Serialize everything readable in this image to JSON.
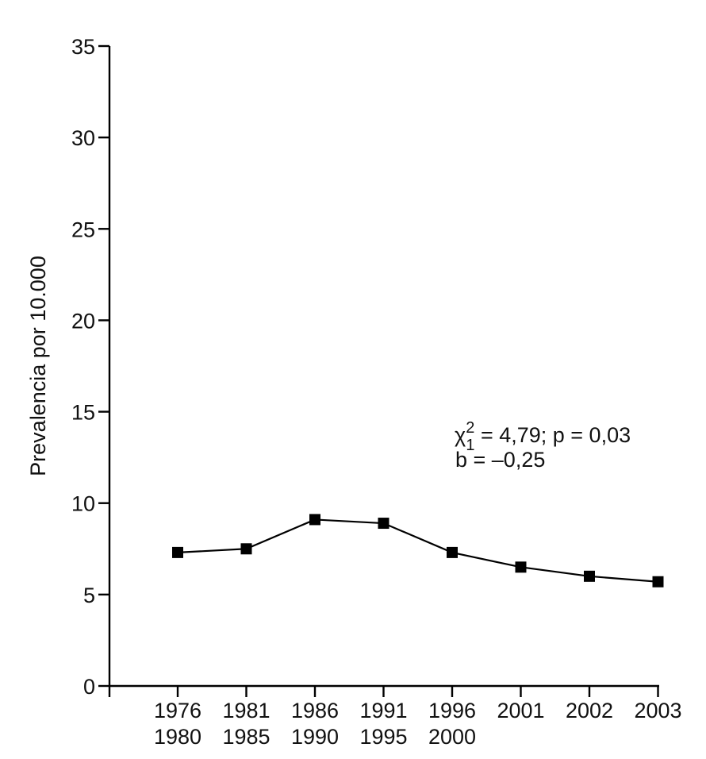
{
  "chart_data": {
    "type": "line",
    "ylabel": "Prevalencia por 10.000",
    "xlabel": "",
    "ylim": [
      0,
      35
    ],
    "yticks": [
      "0",
      "5",
      "10",
      "15",
      "20",
      "25",
      "30",
      "35"
    ],
    "categories": [
      [
        "1976",
        "1980"
      ],
      [
        "1981",
        "1985"
      ],
      [
        "1986",
        "1990"
      ],
      [
        "1991",
        "1995"
      ],
      [
        "1996",
        "2000"
      ],
      [
        "2001"
      ],
      [
        "2002"
      ],
      [
        "2003"
      ]
    ],
    "series": [
      {
        "values": [
          7.3,
          7.5,
          9.1,
          8.9,
          7.3,
          6.5,
          6.0,
          5.7
        ],
        "marker": "square",
        "color": "#000000"
      }
    ],
    "annotations": {
      "chi": {
        "symbol": "χ",
        "sup": "2",
        "sub": "1",
        "text": " = 4,79; p = 0,03"
      },
      "slope": "b = –0,25"
    },
    "grid": false,
    "legend": "none"
  }
}
